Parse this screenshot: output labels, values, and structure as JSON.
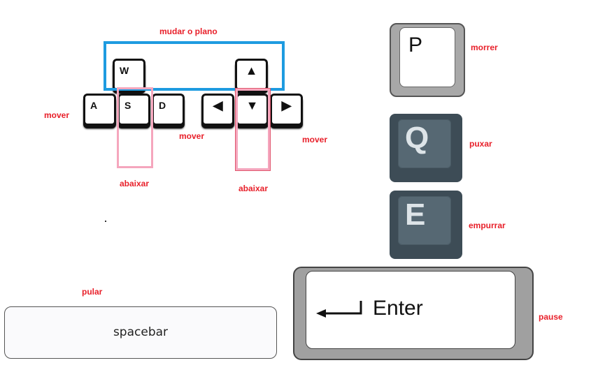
{
  "labels": {
    "change_plane": "mudar o plano",
    "move_left": "mover",
    "move_middle": "mover",
    "move_right": "mover",
    "crouch_left": "abaixar",
    "crouch_right": "abaixar",
    "die": "morrer",
    "pull": "puxar",
    "push": "empurrar",
    "jump": "pular",
    "pause": "pause"
  },
  "keys": {
    "w": "W",
    "a": "A",
    "s": "S",
    "d": "D",
    "up": "▲",
    "left": "◀",
    "down": "▼",
    "right": "▶",
    "p": "P",
    "q": "Q",
    "e": "E",
    "enter": "Enter",
    "spacebar": "spacebar"
  },
  "colors": {
    "label": "#e8202a",
    "blue_box": "#1e9be0",
    "pink_box": "#f5a6bd",
    "slate_key": "#3d4c56"
  }
}
